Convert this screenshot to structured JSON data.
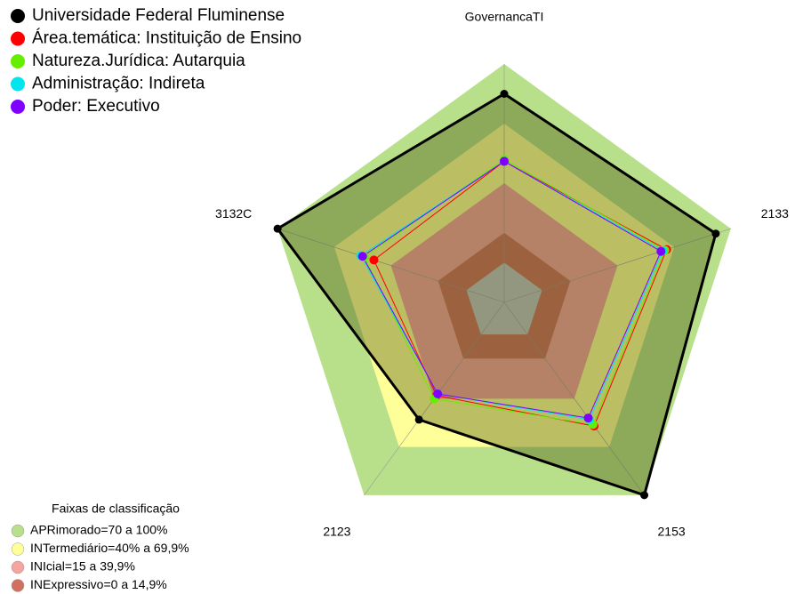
{
  "chart_data": {
    "type": "radar",
    "categories": [
      "GovernancaTI",
      "2133",
      "2153",
      "2123",
      "3132C"
    ],
    "rlim": [
      -20,
      100
    ],
    "series": [
      {
        "name": "Universidade Federal Fluminense",
        "color": "#000000",
        "values": [
          85,
          92,
          100,
          53,
          100
        ]
      },
      {
        "name": "Área.temática: Instituição de Ensino",
        "color": "#ff0000",
        "values": [
          51,
          66,
          57,
          38,
          49
        ]
      },
      {
        "name": "Natureza.Jurídica: Autarquia",
        "color": "#66ee00",
        "values": [
          52,
          65,
          56,
          40,
          54
        ]
      },
      {
        "name": "Administração: Indireta",
        "color": "#00e5ee",
        "values": [
          51,
          64,
          53,
          37,
          56
        ]
      },
      {
        "name": "Poder: Executivo",
        "color": "#7f00ff",
        "values": [
          51,
          63,
          52,
          37,
          55
        ]
      }
    ],
    "bands_title": "Faixas de classificação",
    "bands": [
      {
        "name": "APRimorado=70 a 100%",
        "from": 70,
        "to": 100,
        "color": "#b8e08a"
      },
      {
        "name": "INTermediário=40% a 69,9%",
        "from": 40,
        "to": 70,
        "color": "#ffff99"
      },
      {
        "name": "INIcial=15 a 39,9%",
        "from": 15,
        "to": 40,
        "color": "#f6a4a0"
      },
      {
        "name": "INExpressivo=0 a 14,9%",
        "from": 0,
        "to": 15,
        "color": "#d07060"
      }
    ]
  }
}
